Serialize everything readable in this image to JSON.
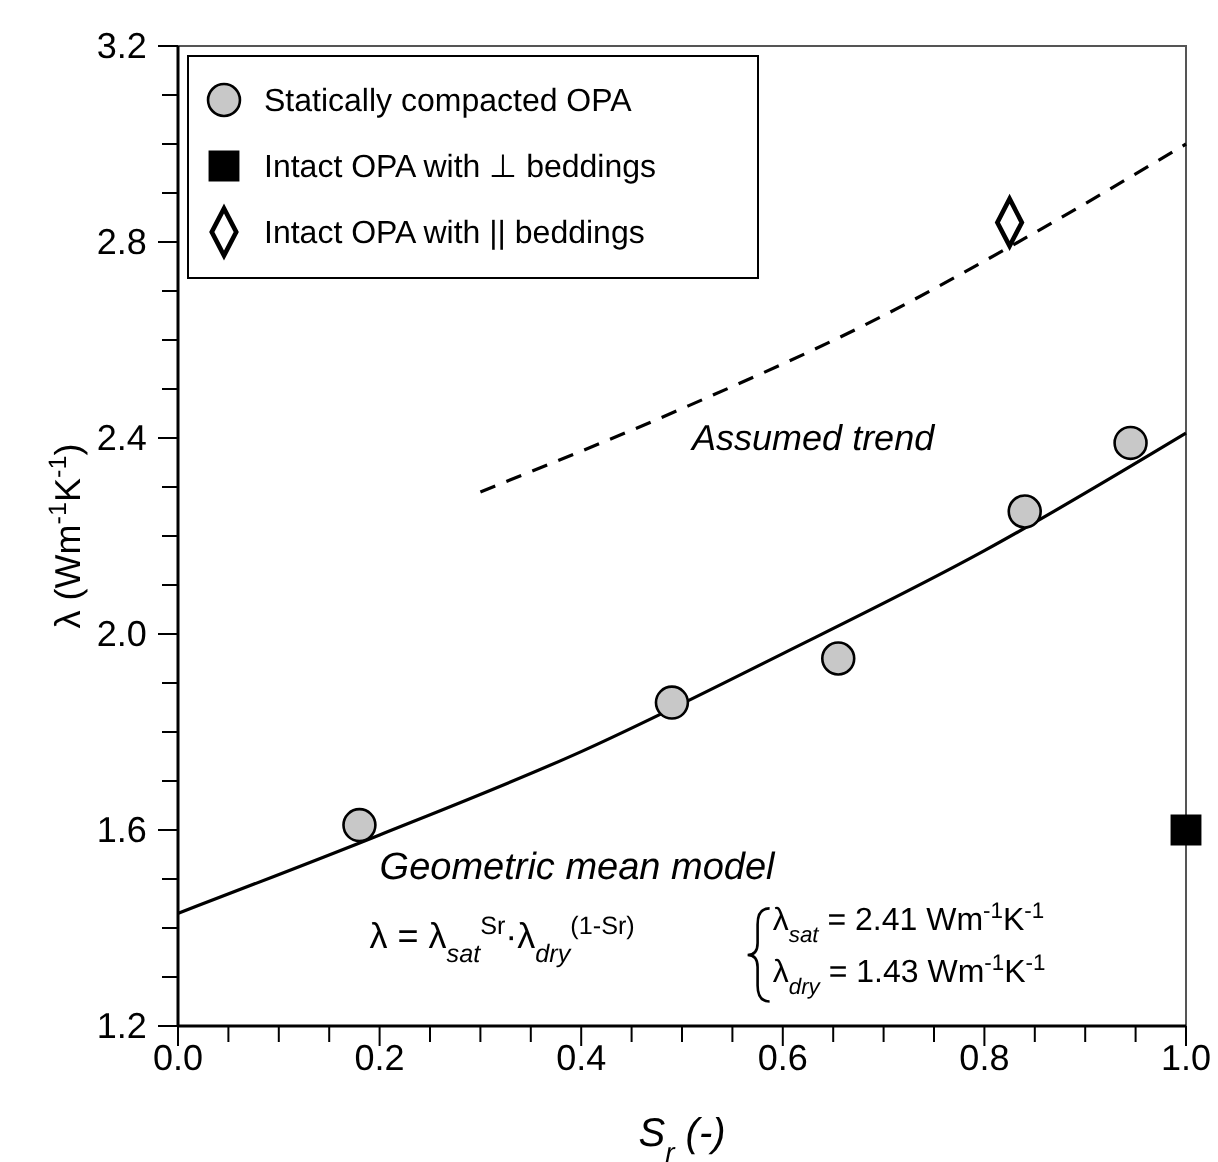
{
  "chart_data": {
    "type": "scatter",
    "xlabel": "S$_{r}$ (-)",
    "ylabel": "λ (Wm$^{-1}$K$^{-1}$)",
    "xlim": [
      0,
      1
    ],
    "ylim": [
      1.2,
      3.2
    ],
    "xticks": [
      {
        "value": 0,
        "label": "0.0"
      },
      {
        "value": 0.05,
        "label": null
      },
      {
        "value": 0.1,
        "label": null
      },
      {
        "value": 0.15,
        "label": null
      },
      {
        "value": 0.2,
        "label": "0.2"
      },
      {
        "value": 0.25,
        "label": null
      },
      {
        "value": 0.3,
        "label": null
      },
      {
        "value": 0.35,
        "label": null
      },
      {
        "value": 0.4,
        "label": "0.4"
      },
      {
        "value": 0.45,
        "label": null
      },
      {
        "value": 0.5,
        "label": null
      },
      {
        "value": 0.55,
        "label": null
      },
      {
        "value": 0.6,
        "label": "0.6"
      },
      {
        "value": 0.65,
        "label": null
      },
      {
        "value": 0.7,
        "label": null
      },
      {
        "value": 0.75,
        "label": null
      },
      {
        "value": 0.8,
        "label": "0.8"
      },
      {
        "value": 0.85,
        "label": null
      },
      {
        "value": 0.9,
        "label": null
      },
      {
        "value": 0.95,
        "label": null
      },
      {
        "value": 1,
        "label": "1.0"
      }
    ],
    "yticks": [
      1.2,
      {
        "value": 1.3,
        "label": null
      },
      {
        "value": 1.4,
        "label": null
      },
      {
        "value": 1.5,
        "label": null
      },
      1.6,
      {
        "value": 1.7,
        "label": null
      },
      {
        "value": 1.8,
        "label": null
      },
      {
        "value": 1.9,
        "label": null
      },
      {
        "value": 2,
        "label": "2.0"
      },
      {
        "value": 2.1,
        "label": null
      },
      {
        "value": 2.2,
        "label": null
      },
      {
        "value": 2.3,
        "label": null
      },
      2.4,
      {
        "value": 2.5,
        "label": null
      },
      {
        "value": 2.6,
        "label": null
      },
      {
        "value": 2.7,
        "label": null
      },
      2.8,
      {
        "value": 2.9,
        "label": null
      },
      {
        "value": 3,
        "label": null
      },
      {
        "value": 3.1,
        "label": null
      },
      3.2
    ],
    "grid": false,
    "legend": "top left",
    "series": [
      {
        "type": "line",
        "color": "#000000",
        "line_style": "solid",
        "marker": "none",
        "x": [
          0,
          0.2,
          0.4,
          0.6,
          0.8,
          1
        ],
        "values": [
          1.43,
          1.59,
          1.76,
          1.96,
          2.17,
          2.41
        ]
      },
      {
        "type": "line",
        "color": "#000000",
        "line_style": "dashed",
        "marker": "none",
        "x": [
          0.3,
          0.5,
          0.7,
          0.825,
          1
        ],
        "values": [
          2.29,
          2.46,
          2.65,
          2.79,
          3.0
        ]
      },
      {
        "name": "Statically compacted OPA",
        "color": "#c8c8c8",
        "marker": "circle",
        "x": [
          0.18,
          0.49,
          0.655,
          0.84,
          0.945
        ],
        "values": [
          1.61,
          1.86,
          1.95,
          2.25,
          2.39
        ]
      },
      {
        "name": "Intact OPA with ⊥ beddings",
        "color": "#000000",
        "marker": "square",
        "x": [
          1.0
        ],
        "values": [
          1.6
        ]
      },
      {
        "name": "Intact OPA with || beddings",
        "color": "#ffffff",
        "marker": "diamond",
        "x": [
          0.825
        ],
        "values": [
          2.84
        ]
      }
    ],
    "annotations": [
      "Assumed trend",
      "Geometric mean model",
      "λ = λ$_{sat}$$^{Sr}$·λ$_{dry}$$^{(1-Sr)}$",
      "λ$_{sat}$ = 2.41 Wm$^{-1}$K$^{-1}$",
      "λ$_{dry}$ = 1.43 Wm$^{-1}$K$^{-1}$"
    ]
  }
}
